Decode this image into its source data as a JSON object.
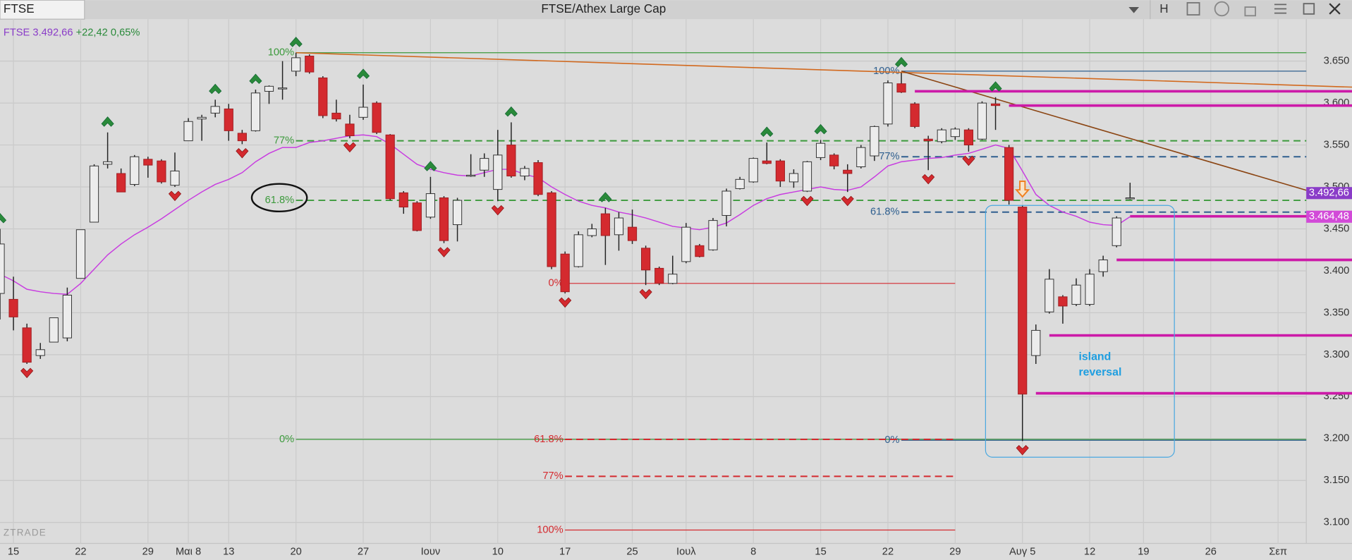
{
  "window": {
    "tab": "FTSE",
    "button": "H"
  },
  "legend": {
    "symbol": "FTSE",
    "price": "3.492,66",
    "change": "+22,42 0,65%"
  },
  "watermark": "ZTRADE",
  "chart_data": {
    "type": "candlestick",
    "title": "FTSE/Athex Large Cap",
    "x": [
      0,
      1,
      2,
      3,
      4,
      5,
      6,
      7,
      8,
      9,
      10,
      11,
      12,
      13,
      14,
      15,
      16,
      17,
      18,
      19,
      20,
      21,
      22,
      23,
      24,
      25,
      26,
      27,
      28,
      29,
      30,
      31,
      32,
      33,
      34,
      35,
      36,
      37,
      38,
      39,
      40,
      41,
      42,
      43,
      44,
      45,
      46,
      47,
      48,
      49,
      50,
      51,
      52,
      53,
      54,
      55,
      56,
      57,
      58,
      59,
      60,
      61,
      62,
      63,
      64,
      65,
      66,
      67,
      68,
      69,
      70,
      71,
      72,
      73,
      74,
      75,
      76,
      77,
      78,
      79,
      80,
      81,
      82,
      83,
      84
    ],
    "open": [
      3373,
      3366,
      3332,
      3299,
      3315,
      3320,
      3391,
      3458,
      3527,
      3516,
      3503,
      3533,
      3531,
      3502,
      3555,
      3581,
      3588,
      3593,
      3564,
      3567,
      3614,
      3617,
      3638,
      3656,
      3630,
      3588,
      3575,
      3583,
      3600,
      3562,
      3493,
      3481,
      3464,
      3487,
      3455,
      3513,
      3520,
      3497,
      3550,
      3513,
      3529,
      3493,
      3420,
      3405,
      3442,
      3468,
      3443,
      3452,
      3427,
      3403,
      3385,
      3411,
      3430,
      3425,
      3466,
      3498,
      3506,
      3531,
      3531,
      3506,
      3495,
      3535,
      3538,
      3520,
      3524,
      3537,
      3575,
      3623,
      3599,
      3557,
      3554,
      3560,
      3568,
      3557,
      3599,
      3547,
      3476,
      3299,
      3351,
      3369,
      3360,
      3360,
      3399,
      3430,
      3486
    ],
    "high": [
      3450,
      3393,
      3337,
      3314,
      3344,
      3380,
      3449,
      3527,
      3565,
      3522,
      3538,
      3536,
      3533,
      3541,
      3582,
      3586,
      3604,
      3599,
      3568,
      3616,
      3621,
      3650,
      3660,
      3658,
      3632,
      3604,
      3586,
      3622,
      3602,
      3563,
      3495,
      3483,
      3512,
      3489,
      3487,
      3539,
      3540,
      3568,
      3577,
      3525,
      3532,
      3495,
      3423,
      3447,
      3456,
      3475,
      3470,
      3473,
      3430,
      3405,
      3418,
      3457,
      3432,
      3463,
      3498,
      3512,
      3535,
      3553,
      3533,
      3521,
      3531,
      3556,
      3540,
      3527,
      3550,
      3573,
      3627,
      3636,
      3601,
      3561,
      3570,
      3571,
      3570,
      3602,
      3607,
      3550,
      3478,
      3336,
      3402,
      3371,
      3391,
      3402,
      3418,
      3465,
      3505
    ],
    "low": [
      3342,
      3329,
      3289,
      3295,
      3315,
      3316,
      3391,
      3458,
      3522,
      3494,
      3501,
      3511,
      3504,
      3500,
      3555,
      3555,
      3583,
      3555,
      3551,
      3566,
      3599,
      3604,
      3632,
      3635,
      3582,
      3578,
      3558,
      3580,
      3563,
      3484,
      3468,
      3447,
      3462,
      3433,
      3435,
      3512,
      3512,
      3483,
      3511,
      3508,
      3489,
      3402,
      3373,
      3404,
      3440,
      3407,
      3424,
      3432,
      3383,
      3383,
      3384,
      3409,
      3416,
      3424,
      3453,
      3497,
      3505,
      3527,
      3500,
      3499,
      3494,
      3532,
      3521,
      3494,
      3522,
      3531,
      3572,
      3612,
      3570,
      3520,
      3552,
      3556,
      3542,
      3556,
      3568,
      3479,
      3197,
      3289,
      3349,
      3337,
      3358,
      3358,
      3393,
      3428,
      3485
    ],
    "close": [
      3432,
      3345,
      3291,
      3306,
      3344,
      3371,
      3449,
      3525,
      3530,
      3494,
      3536,
      3526,
      3506,
      3519,
      3578,
      3583,
      3596,
      3567,
      3555,
      3612,
      3620,
      3618,
      3654,
      3637,
      3585,
      3581,
      3561,
      3595,
      3565,
      3486,
      3476,
      3448,
      3492,
      3436,
      3484,
      3514,
      3534,
      3538,
      3513,
      3522,
      3491,
      3405,
      3375,
      3443,
      3450,
      3442,
      3463,
      3436,
      3401,
      3385,
      3396,
      3452,
      3417,
      3460,
      3495,
      3509,
      3534,
      3528,
      3507,
      3516,
      3530,
      3552,
      3525,
      3516,
      3547,
      3572,
      3624,
      3613,
      3572,
      3555,
      3568,
      3569,
      3550,
      3600,
      3597,
      3484,
      3253,
      3329,
      3390,
      3358,
      3383,
      3396,
      3413,
      3463,
      3487
    ],
    "up_color": "#ececec",
    "down_color": "#d42a2f",
    "ma": {
      "color": "#c83ce0",
      "values": [
        3396,
        3388,
        3378,
        3375,
        3373,
        3372,
        3385,
        3402,
        3419,
        3432,
        3443,
        3452,
        3462,
        3473,
        3484,
        3494,
        3503,
        3509,
        3517,
        3530,
        3540,
        3547,
        3547,
        3553,
        3555,
        3558,
        3561,
        3562,
        3560,
        3551,
        3539,
        3527,
        3521,
        3517,
        3514,
        3513,
        3517,
        3521,
        3521,
        3515,
        3511,
        3500,
        3491,
        3483,
        3478,
        3475,
        3470,
        3467,
        3463,
        3458,
        3453,
        3451,
        3449,
        3452,
        3457,
        3467,
        3478,
        3486,
        3491,
        3494,
        3497,
        3500,
        3497,
        3496,
        3500,
        3512,
        3525,
        3530,
        3532,
        3534,
        3535,
        3538,
        3540,
        3545,
        3550,
        3546,
        3519,
        3491,
        3478,
        3470,
        3465,
        3458,
        3455,
        3454,
        3464.48
      ]
    },
    "price_tag": {
      "value": 3492.66,
      "label": "3.492,66",
      "color": "#8a3cc8"
    },
    "ma_tag": {
      "value": 3464.48,
      "label": "3.464,48",
      "color": "#d24ad8"
    },
    "xlim": [
      0,
      97.1
    ],
    "ylim": [
      3075,
      3700
    ],
    "grid": true,
    "yticks": [
      {
        "value": 3100,
        "label": "3.100"
      },
      {
        "value": 3150,
        "label": "3.150"
      },
      {
        "value": 3200,
        "label": "3.200"
      },
      {
        "value": 3250,
        "label": "3.250"
      },
      {
        "value": 3300,
        "label": "3.300"
      },
      {
        "value": 3350,
        "label": "3.350"
      },
      {
        "value": 3400,
        "label": "3.400"
      },
      {
        "value": 3450,
        "label": "3.450"
      },
      {
        "value": 3500,
        "label": "3.500"
      },
      {
        "value": 3550,
        "label": "3.550"
      },
      {
        "value": 3600,
        "label": "3.600"
      },
      {
        "value": 3650,
        "label": "3.650"
      }
    ],
    "xticks": [
      {
        "value": 1,
        "label": "15"
      },
      {
        "value": 6,
        "label": "22"
      },
      {
        "value": 11,
        "label": "29"
      },
      {
        "value": 14,
        "label": "Μαι 8"
      },
      {
        "value": 17,
        "label": "13"
      },
      {
        "value": 22,
        "label": "20"
      },
      {
        "value": 27,
        "label": "27"
      },
      {
        "value": 32,
        "label": "Ιουν"
      },
      {
        "value": 37,
        "label": "10"
      },
      {
        "value": 42,
        "label": "17"
      },
      {
        "value": 47,
        "label": "25"
      },
      {
        "value": 51,
        "label": "Ιουλ"
      },
      {
        "value": 56,
        "label": "8"
      },
      {
        "value": 61,
        "label": "15"
      },
      {
        "value": 66,
        "label": "22"
      },
      {
        "value": 71,
        "label": "29"
      },
      {
        "value": 76,
        "label": "Αυγ 5"
      },
      {
        "value": 81,
        "label": "12"
      },
      {
        "value": 85,
        "label": "19"
      },
      {
        "value": 90,
        "label": "26"
      },
      {
        "value": 95,
        "label": "Σεπ"
      }
    ],
    "fibs": [
      {
        "color": "#3c9a3c",
        "from": 22,
        "levels": [
          {
            "label": "100%",
            "value": 3660,
            "style": "solid"
          },
          {
            "label": "77%",
            "value": 3555,
            "style": "dashed"
          },
          {
            "label": "61.8%",
            "value": 3484,
            "style": "dashed"
          },
          {
            "label": "0%",
            "value": 3199,
            "style": "solid"
          }
        ]
      },
      {
        "color": "#2f5f8f",
        "from": 67,
        "levels": [
          {
            "label": "100%",
            "value": 3638,
            "style": "solid"
          },
          {
            "label": "77%",
            "value": 3536,
            "style": "dashed"
          },
          {
            "label": "61.8%",
            "value": 3470,
            "style": "dashed"
          },
          {
            "label": "0%",
            "value": 3198,
            "style": "solid"
          }
        ]
      },
      {
        "color": "#d42a2f",
        "from": 42,
        "to": 71,
        "levels": [
          {
            "label": "0%",
            "value": 3385,
            "style": "solid"
          },
          {
            "label": "61.8%",
            "value": 3199,
            "style": "dashed"
          },
          {
            "label": "77%",
            "value": 3155,
            "style": "dashed"
          },
          {
            "label": "100%",
            "value": 3091,
            "style": "solid"
          }
        ]
      }
    ],
    "hlines": {
      "color": "#cc1aa8",
      "levels": [
        {
          "value": 3614,
          "from": 68
        },
        {
          "value": 3597,
          "from": 75
        },
        {
          "value": 3465,
          "from": 84
        },
        {
          "value": 3413,
          "from": 83
        },
        {
          "value": 3323,
          "from": 78
        },
        {
          "value": 3254,
          "from": 77
        }
      ]
    },
    "trendlines": [
      {
        "color": "#d2691e",
        "x": [
          22,
          100.5
        ],
        "y": [
          3660,
          3619
        ]
      },
      {
        "color": "#8b4513",
        "x": [
          67,
          97.1
        ],
        "y": [
          3638,
          3496
        ]
      }
    ],
    "up_signals": [
      0,
      8,
      16,
      19,
      22,
      27,
      32,
      38,
      45,
      57,
      61,
      67,
      74
    ],
    "down_signals": [
      2,
      13,
      18,
      26,
      33,
      37,
      42,
      48,
      60,
      63,
      69,
      72,
      76
    ],
    "sell_arrow": 76,
    "annotation": {
      "lines": [
        "island",
        "reversal"
      ],
      "color": "#1e9ee0"
    }
  }
}
